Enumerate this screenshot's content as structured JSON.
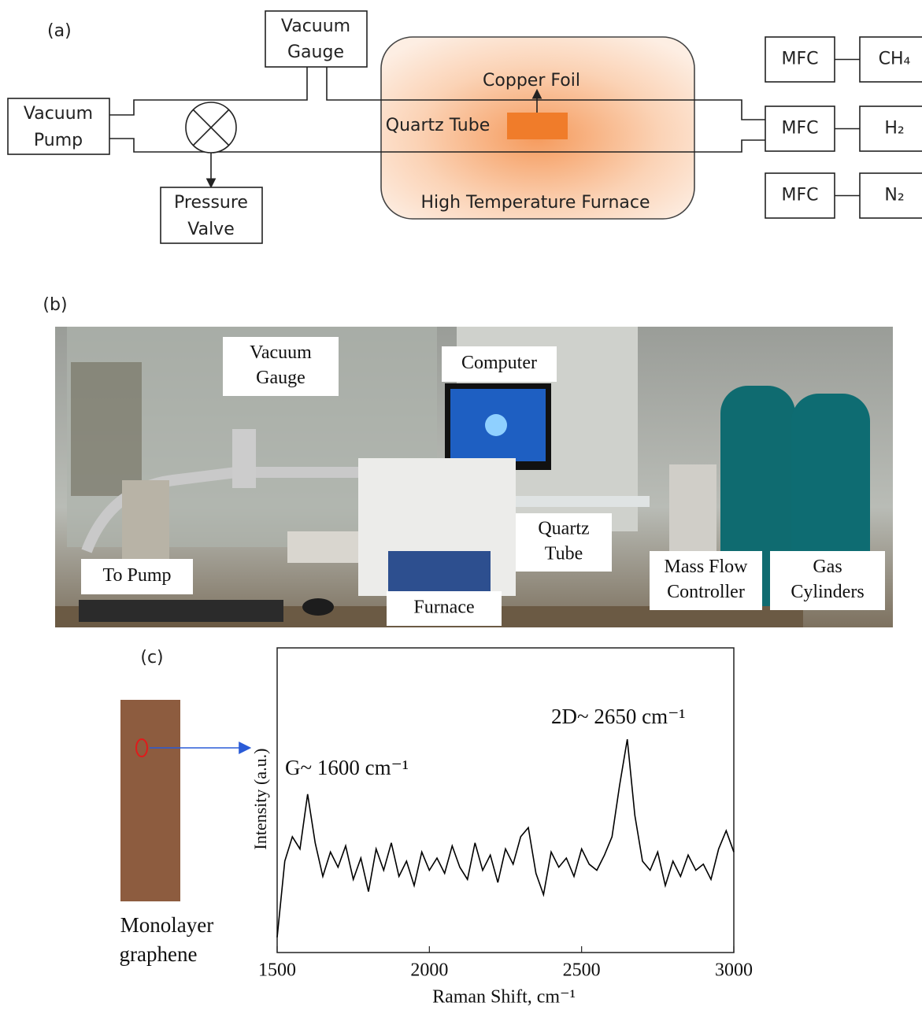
{
  "panel_a": {
    "label": "(a)",
    "vacuum_gauge": [
      "Vacuum",
      "Gauge"
    ],
    "vacuum_pump": [
      "Vacuum",
      "Pump"
    ],
    "pressure_valve": [
      "Pressure",
      "Valve"
    ],
    "copper_foil": "Copper Foil",
    "quartz_tube": "Quartz Tube",
    "furnace": "High Temperature Furnace",
    "mfcs": [
      {
        "label": "MFC",
        "gas": "CH₄"
      },
      {
        "label": "MFC",
        "gas": "H₂"
      },
      {
        "label": "MFC",
        "gas": "N₂"
      }
    ]
  },
  "panel_b": {
    "label": "(b)",
    "vacuum_gauge": [
      "Vacuum",
      "Gauge"
    ],
    "computer": "Computer",
    "quartz_tube": [
      "Quartz",
      "Tube"
    ],
    "to_pump": "To Pump",
    "furnace": "Furnace",
    "mass_flow_controller": [
      "Mass Flow",
      "Controller"
    ],
    "gas_cylinders": [
      "Gas",
      "Cylinders"
    ]
  },
  "panel_c": {
    "label": "(c)",
    "sample": [
      "Monolayer",
      "graphene"
    ]
  },
  "chart_data": {
    "type": "line",
    "x_label": "Raman Shift, cm⁻¹",
    "y_label": "Intensity (a.u.)",
    "annotations": [
      "G~ 1600 cm⁻¹",
      "2D~ 2650 cm⁻¹"
    ],
    "color": "#000000",
    "xlim": [
      1500,
      3000
    ],
    "xticks": [
      1500,
      2000,
      2500,
      3000
    ],
    "ylim": [
      0,
      100
    ],
    "x": [
      1500,
      1525,
      1550,
      1575,
      1600,
      1625,
      1650,
      1675,
      1700,
      1725,
      1750,
      1775,
      1800,
      1825,
      1850,
      1875,
      1900,
      1925,
      1950,
      1975,
      2000,
      2025,
      2050,
      2075,
      2100,
      2125,
      2150,
      2175,
      2200,
      2225,
      2250,
      2275,
      2300,
      2325,
      2350,
      2375,
      2400,
      2425,
      2450,
      2475,
      2500,
      2525,
      2550,
      2575,
      2600,
      2625,
      2650,
      2675,
      2700,
      2725,
      2750,
      2775,
      2800,
      2825,
      2850,
      2875,
      2900,
      2925,
      2950,
      2975,
      3000
    ],
    "values": [
      5,
      30,
      38,
      34,
      52,
      36,
      25,
      33,
      28,
      35,
      24,
      31,
      20,
      34,
      27,
      36,
      25,
      30,
      22,
      33,
      27,
      31,
      26,
      35,
      28,
      24,
      36,
      27,
      32,
      23,
      34,
      29,
      38,
      41,
      26,
      19,
      33,
      28,
      31,
      25,
      34,
      29,
      27,
      32,
      38,
      55,
      70,
      45,
      30,
      27,
      33,
      22,
      30,
      25,
      32,
      27,
      29,
      24,
      34,
      40,
      33
    ]
  }
}
